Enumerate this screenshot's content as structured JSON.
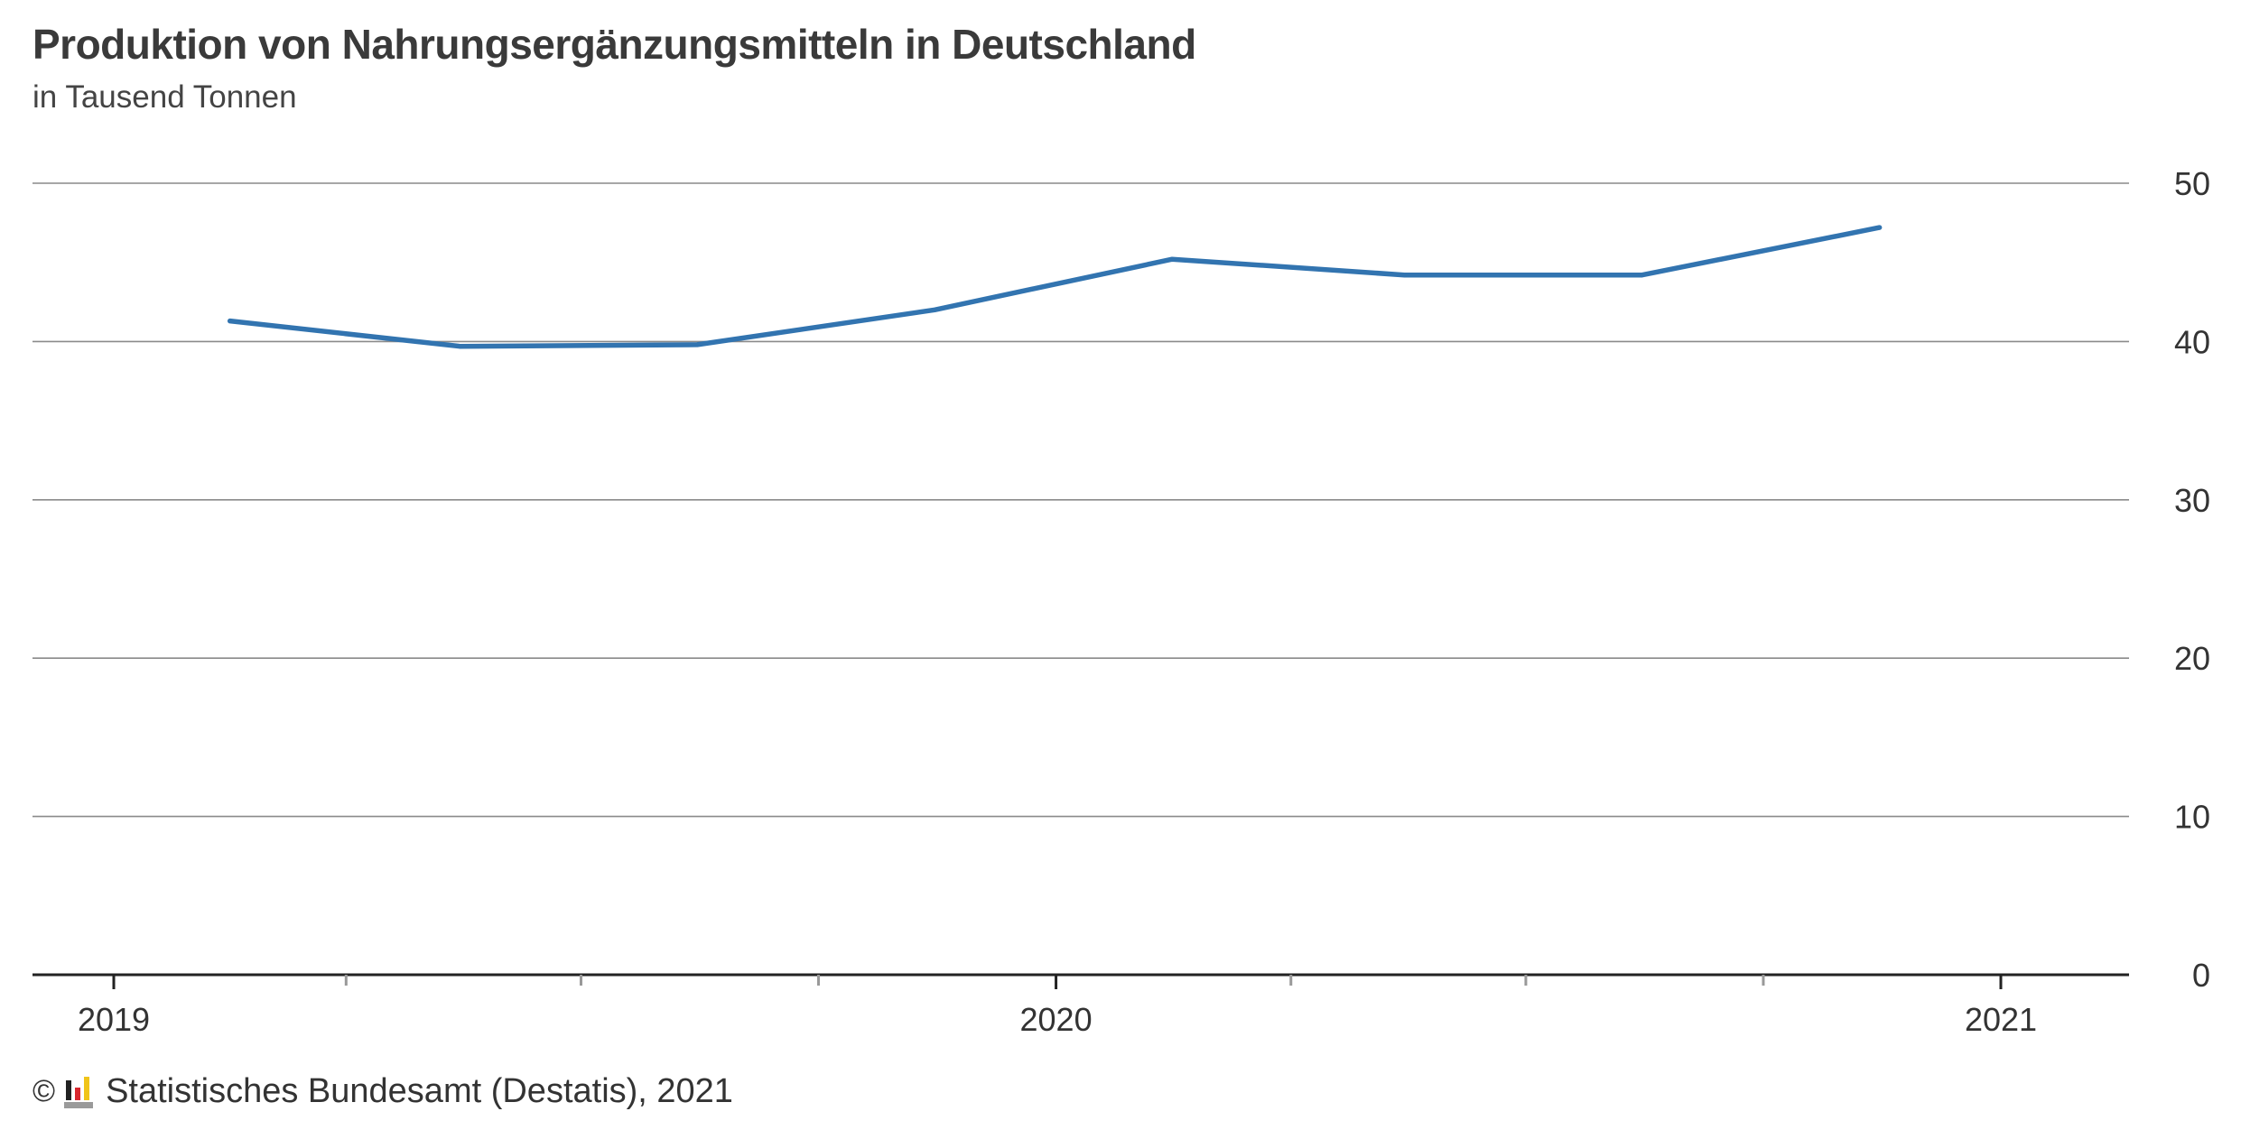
{
  "chart_data": {
    "type": "line",
    "title": "Produktion von Nahrungsergänzungsmitteln in Deutschland",
    "subtitle": "in Tausend Tonnen",
    "xlabel": "",
    "ylabel": "",
    "x_ticks": [
      "2019",
      "2020",
      "2021"
    ],
    "x_range": [
      "2019-01-01",
      "2021-02-15"
    ],
    "ylim": [
      0,
      50
    ],
    "y_ticks": [
      0,
      10,
      20,
      30,
      40,
      50
    ],
    "grid": true,
    "y_axis_position": "right",
    "series": [
      {
        "color": "#3274b0",
        "x": [
          "2019-02-15",
          "2019-05-15",
          "2019-08-15",
          "2019-11-15",
          "2020-02-15",
          "2020-05-15",
          "2020-08-15",
          "2020-11-15"
        ],
        "values": [
          41.3,
          39.7,
          39.8,
          42.0,
          45.2,
          44.2,
          44.2,
          47.2
        ]
      }
    ]
  },
  "footer": {
    "copyright": "©",
    "source": "Statistisches Bundesamt (Destatis), 2021"
  }
}
